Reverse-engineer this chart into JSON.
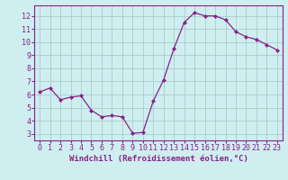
{
  "x": [
    0,
    1,
    2,
    3,
    4,
    5,
    6,
    7,
    8,
    9,
    10,
    11,
    12,
    13,
    14,
    15,
    16,
    17,
    18,
    19,
    20,
    21,
    22,
    23
  ],
  "y": [
    6.2,
    6.5,
    5.6,
    5.8,
    5.9,
    4.8,
    4.3,
    4.4,
    4.3,
    3.05,
    3.1,
    5.5,
    7.1,
    9.5,
    11.5,
    12.25,
    12.0,
    12.0,
    11.7,
    10.8,
    10.4,
    10.2,
    9.8,
    9.4
  ],
  "line_color": "#882288",
  "marker": "D",
  "marker_size": 2.0,
  "bg_color": "#ceeef0",
  "grid_color": "#aacccc",
  "border_color": "#882288",
  "xlabel": "Windchill (Refroidissement éolien,°C)",
  "xlabel_fontsize": 6.5,
  "tick_fontsize": 6.0,
  "ylim": [
    2.5,
    12.8
  ],
  "xlim": [
    -0.5,
    23.5
  ],
  "yticks": [
    3,
    4,
    5,
    6,
    7,
    8,
    9,
    10,
    11,
    12
  ],
  "xticks": [
    0,
    1,
    2,
    3,
    4,
    5,
    6,
    7,
    8,
    9,
    10,
    11,
    12,
    13,
    14,
    15,
    16,
    17,
    18,
    19,
    20,
    21,
    22,
    23
  ]
}
